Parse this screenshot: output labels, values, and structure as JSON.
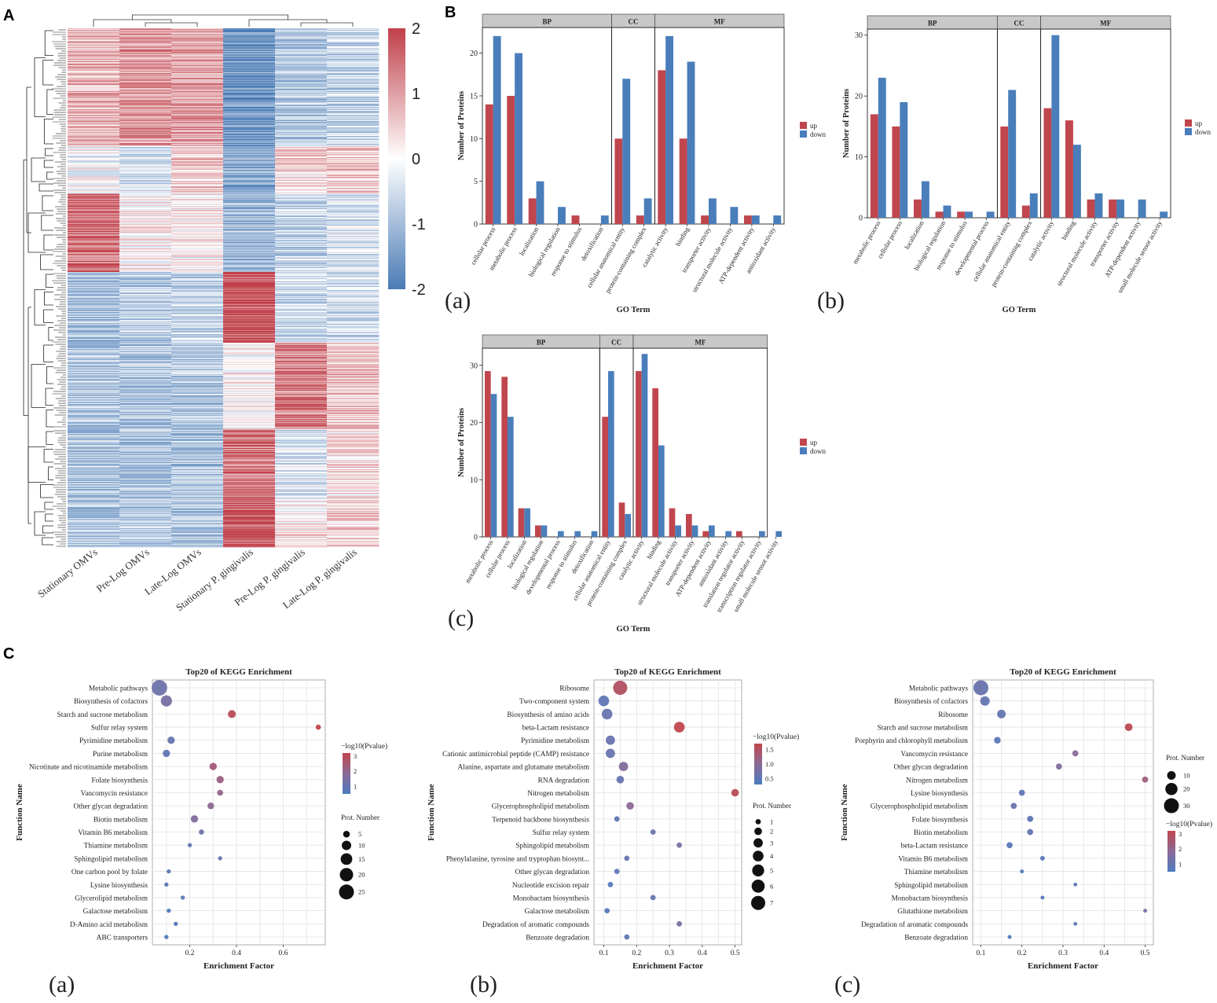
{
  "figure": {
    "panel_labels": [
      "A",
      "B",
      "C"
    ],
    "colors": {
      "up": "#c0464d",
      "down": "#4a7ebb",
      "strip": "#c8c8c8",
      "heat_high": "#c0404a",
      "heat_mid": "#ffffff",
      "heat_low": "#4a7bb5"
    }
  },
  "chart_data": [
    {
      "id": "A",
      "type": "heatmap",
      "columns": [
        "Stationary OMVs",
        "Pre-Log OMVs",
        "Late-Log OMVs",
        "Stationary P. gingivalis",
        "Pre-Log P. gingivalis",
        "Late-Log P. gingivalis"
      ],
      "colorbar": {
        "min": -2,
        "max": 2,
        "ticks": [
          2,
          1,
          0,
          -1,
          -2
        ]
      },
      "row_clusters": [
        {
          "rows": 150,
          "values": [
            0.8,
            1.1,
            1.0,
            -1.6,
            -0.8,
            -0.6
          ]
        },
        {
          "rows": 60,
          "values": [
            -0.1,
            -0.4,
            0.6,
            -1.2,
            0.4,
            0.6
          ]
        },
        {
          "rows": 100,
          "values": [
            1.5,
            0.2,
            0.1,
            -1.0,
            -0.6,
            -0.4
          ]
        },
        {
          "rows": 90,
          "values": [
            -0.9,
            -0.8,
            -0.6,
            1.8,
            -0.6,
            -0.5
          ]
        },
        {
          "rows": 110,
          "values": [
            -0.8,
            -0.9,
            -0.8,
            0.1,
            1.3,
            0.6
          ]
        },
        {
          "rows": 90,
          "values": [
            -0.9,
            -0.9,
            -0.9,
            1.4,
            -0.4,
            0.3
          ]
        },
        {
          "rows": 60,
          "values": [
            -0.8,
            -0.8,
            -0.8,
            1.8,
            0.2,
            0.5
          ]
        }
      ]
    },
    {
      "id": "B-a",
      "type": "bar",
      "sub_label": "(a)",
      "xlabel": "GO Term",
      "ylabel": "Number of Proteins",
      "ylim": [
        0,
        23
      ],
      "yticks": [
        0,
        5,
        10,
        15,
        20
      ],
      "legend": [
        "up",
        "down"
      ],
      "groups": [
        {
          "name": "BP",
          "count": 6
        },
        {
          "name": "CC",
          "count": 2
        },
        {
          "name": "MF",
          "count": 6
        }
      ],
      "categories": [
        "cellular process",
        "metabolic process",
        "localization",
        "biological regulation",
        "response to stimulus",
        "detoxification",
        "cellular anatomical entity",
        "protein-containing complex",
        "catalytic activity",
        "binding",
        "transporter activity",
        "structural molecule activity",
        "ATP-dependent activity",
        "antioxidant activity"
      ],
      "series": [
        {
          "name": "up",
          "values": [
            14,
            15,
            3,
            0,
            1,
            0,
            10,
            1,
            18,
            10,
            1,
            0,
            1,
            0
          ]
        },
        {
          "name": "down",
          "values": [
            22,
            20,
            5,
            2,
            0,
            1,
            17,
            3,
            22,
            19,
            3,
            2,
            1,
            1
          ]
        }
      ]
    },
    {
      "id": "B-b",
      "type": "bar",
      "sub_label": "(b)",
      "xlabel": "GO Term",
      "ylabel": "Number of Proteins",
      "ylim": [
        0,
        31
      ],
      "yticks": [
        0,
        10,
        20,
        30
      ],
      "legend": [
        "up",
        "down"
      ],
      "groups": [
        {
          "name": "BP",
          "count": 6
        },
        {
          "name": "CC",
          "count": 2
        },
        {
          "name": "MF",
          "count": 6
        }
      ],
      "categories": [
        "metabolic process",
        "cellular process",
        "localization",
        "biological regulation",
        "response to stimulus",
        "developmental process",
        "cellular anatomical entity",
        "protein-containing complex",
        "catalytic activity",
        "binding",
        "structural molecule activity",
        "transporter activity",
        "ATP-dependent activity",
        "small molecule sensor activity"
      ],
      "series": [
        {
          "name": "up",
          "values": [
            17,
            15,
            3,
            1,
            1,
            0,
            15,
            2,
            18,
            16,
            3,
            3,
            0,
            0
          ]
        },
        {
          "name": "down",
          "values": [
            23,
            19,
            6,
            2,
            1,
            1,
            21,
            4,
            30,
            12,
            4,
            3,
            3,
            1
          ]
        }
      ]
    },
    {
      "id": "B-c",
      "type": "bar",
      "sub_label": "(c)",
      "xlabel": "GO Term",
      "ylabel": "Number of Proteins",
      "ylim": [
        0,
        33
      ],
      "yticks": [
        0,
        10,
        20,
        30
      ],
      "legend": [
        "up",
        "down"
      ],
      "groups": [
        {
          "name": "BP",
          "count": 7
        },
        {
          "name": "CC",
          "count": 2
        },
        {
          "name": "MF",
          "count": 8
        }
      ],
      "categories": [
        "metabolic process",
        "cellular process",
        "localization",
        "biological regulation",
        "developmental process",
        "response to stimulus",
        "detoxification",
        "cellular anatomical entity",
        "protein-containing complex",
        "catalytic activity",
        "binding",
        "structural molecule activity",
        "transporter activity",
        "ATP-dependent activity",
        "antioxidant activity",
        "translation regulator activity",
        "transcription regulator activity",
        "small molecule sensor activity"
      ],
      "series": [
        {
          "name": "up",
          "values": [
            29,
            28,
            5,
            2,
            0,
            0,
            0,
            21,
            6,
            29,
            26,
            5,
            4,
            1,
            0,
            1,
            0,
            0
          ]
        },
        {
          "name": "down",
          "values": [
            25,
            21,
            5,
            2,
            1,
            1,
            1,
            29,
            4,
            32,
            16,
            2,
            2,
            2,
            1,
            0,
            1,
            1
          ]
        }
      ]
    },
    {
      "id": "C-a",
      "type": "scatter",
      "sub_label": "(a)",
      "title": "Top20 of KEGG Enrichment",
      "xlabel": "Enrichment Factor",
      "ylabel": "Function Name",
      "xlim": [
        0.04,
        0.78
      ],
      "xticks": [
        0.2,
        0.4,
        0.6
      ],
      "xtick_labels": [
        "0.2",
        "0.4",
        "0.6"
      ],
      "color_legend": {
        "title": "−log10(Pvalue)",
        "min": 0.5,
        "max": 3.2,
        "ticks": [
          3,
          2,
          1
        ]
      },
      "size_legend": {
        "title": "Prot. Number",
        "values": [
          5,
          10,
          15,
          20,
          25
        ]
      },
      "terms": [
        "Metabolic pathways",
        "Biosynthesis of cofactors",
        "Starch and sucrose metabolism",
        "Sulfur relay system",
        "Pyrimidine metabolism",
        "Purine metabolism",
        "Nicotinate and nicotinamide metabolism",
        "Folate biosynthesis",
        "Vancomycin resistance",
        "Other glycan degradation",
        "Biotin metabolism",
        "Vitamin B6 metabolism",
        "Thiamine metabolism",
        "Sphingolipid metabolism",
        "One carbon pool by folate",
        "Lysine biosynthesis",
        "Glycerolipid metabolism",
        "Galactose metabolism",
        "D-Amino acid metabolism",
        "ABC transporters"
      ],
      "x": [
        0.07,
        0.1,
        0.38,
        0.75,
        0.12,
        0.1,
        0.3,
        0.33,
        0.33,
        0.29,
        0.22,
        0.25,
        0.2,
        0.33,
        0.11,
        0.1,
        0.17,
        0.11,
        0.14,
        0.1
      ],
      "count": [
        27,
        14,
        7,
        3,
        6,
        6,
        6,
        6,
        4,
        5,
        6,
        3,
        2,
        2,
        2,
        2,
        2,
        2,
        2,
        2
      ],
      "neglog10p": [
        1.2,
        1.4,
        3.0,
        3.2,
        1.0,
        0.9,
        2.4,
        2.3,
        2.1,
        1.9,
        1.6,
        1.2,
        1.0,
        1.1,
        0.8,
        0.7,
        0.8,
        0.6,
        0.7,
        0.6
      ]
    },
    {
      "id": "C-b",
      "type": "scatter",
      "sub_label": "(b)",
      "title": "Top20 of KEGG Enrichment",
      "xlabel": "Enrichment Factor",
      "ylabel": "Function Name",
      "xlim": [
        0.07,
        0.52
      ],
      "xticks": [
        0.1,
        0.2,
        0.3,
        0.4,
        0.5
      ],
      "xtick_labels": [
        "0.1",
        "0.2",
        "0.3",
        "0.4",
        "0.5"
      ],
      "color_legend": {
        "title": "−log10(Pvalue)",
        "min": 0.3,
        "max": 1.7,
        "ticks": [
          1.5,
          1.0,
          0.5
        ],
        "tick_labels": [
          "1.5",
          "1.0",
          "0.5"
        ]
      },
      "size_legend": {
        "title": "Prot. Number",
        "values": [
          1,
          2,
          3,
          4,
          5,
          6,
          7
        ]
      },
      "terms": [
        "Ribosome",
        "Two-component system",
        "Biosynthesis of amino acids",
        "beta-Lactam resistance",
        "Pyrimidine metabolism",
        "Cationic antimicrobial peptide (CAMP) resistance",
        "Alanine, aspartate and glutamate metabolism",
        "RNA degradation",
        "Nitrogen metabolism",
        "Glycerophospholipid metabolism",
        "Terpenoid backbone biosynthesis",
        "Sulfur relay system",
        "Sphingolipid metabolism",
        "Phenylalanine, tyrosine and tryptophan biosynt...",
        "Other glycan degradation",
        "Nucleotide excision repair",
        "Monobactam biosynthesis",
        "Galactose metabolism",
        "Degradation of aromatic compounds",
        "Benzoate degradation"
      ],
      "x": [
        0.15,
        0.1,
        0.11,
        0.33,
        0.12,
        0.12,
        0.16,
        0.15,
        0.5,
        0.18,
        0.14,
        0.25,
        0.33,
        0.17,
        0.14,
        0.12,
        0.25,
        0.11,
        0.33,
        0.17
      ],
      "count": [
        7,
        4,
        4,
        4,
        3,
        3,
        3,
        2,
        2,
        2,
        1,
        1,
        1,
        1,
        1,
        1,
        1,
        1,
        1,
        1
      ],
      "neglog10p": [
        1.5,
        0.5,
        0.6,
        1.7,
        0.6,
        0.6,
        0.9,
        0.6,
        1.6,
        1.0,
        0.5,
        0.6,
        0.8,
        0.6,
        0.5,
        0.4,
        0.6,
        0.4,
        0.8,
        0.5
      ]
    },
    {
      "id": "C-c",
      "type": "scatter",
      "sub_label": "(c)",
      "title": "Top20 of KEGG Enrichment",
      "xlabel": "Enrichment Factor",
      "ylabel": "Function Name",
      "xlim": [
        0.08,
        0.52
      ],
      "xticks": [
        0.1,
        0.2,
        0.3,
        0.4,
        0.5
      ],
      "xtick_labels": [
        "0.1",
        "0.2",
        "0.3",
        "0.4",
        "0.5"
      ],
      "color_legend": {
        "title": "−log10(Pvalue)",
        "min": 0.5,
        "max": 3.2,
        "ticks": [
          3,
          2,
          1
        ]
      },
      "size_legend": {
        "title": "Prot. Number",
        "values": [
          10,
          20,
          30
        ]
      },
      "terms": [
        "Metabolic pathways",
        "Biosynthesis of cofactors",
        "Ribosome",
        "Starch and sucrose metabolism",
        "Porphyrin and chlorophyll metabolism",
        "Vancomycin resistance",
        "Other glycan degradation",
        "Nitrogen metabolism",
        "Lysine biosynthesis",
        "Glycerophospholipid metabolism",
        "Folate biosynthesis",
        "Biotin metabolism",
        "beta-Lactam resistance",
        "Vitamin B6 metabolism",
        "Thiamine metabolism",
        "Sphingolipid metabolism",
        "Monobactam biosynthesis",
        "Glutathione metabolism",
        "Degradation of aromatic compounds",
        "Benzoate degradation"
      ],
      "x": [
        0.1,
        0.11,
        0.15,
        0.46,
        0.14,
        0.33,
        0.29,
        0.5,
        0.2,
        0.18,
        0.22,
        0.22,
        0.17,
        0.25,
        0.2,
        0.33,
        0.25,
        0.5,
        0.33,
        0.17
      ],
      "count": [
        30,
        12,
        10,
        8,
        6,
        5,
        5,
        5,
        5,
        5,
        5,
        5,
        5,
        3,
        2,
        2,
        2,
        2,
        2,
        2
      ],
      "neglog10p": [
        1.1,
        1.0,
        1.0,
        3.1,
        0.8,
        1.8,
        1.7,
        2.3,
        0.9,
        1.1,
        0.9,
        1.0,
        0.8,
        0.8,
        0.6,
        0.8,
        0.7,
        1.4,
        0.8,
        0.5
      ]
    }
  ]
}
